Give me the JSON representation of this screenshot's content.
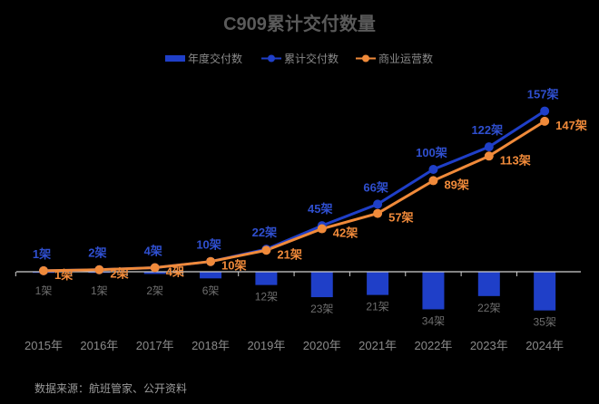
{
  "chart_data": {
    "type": "bar+line",
    "title": "C909累计交付数量",
    "categories": [
      "2015年",
      "2016年",
      "2017年",
      "2018年",
      "2019年",
      "2020年",
      "2021年",
      "2022年",
      "2023年",
      "2024年"
    ],
    "unit": "架",
    "series": [
      {
        "name": "年度交付数",
        "type": "bar",
        "color": "#1f3fc8",
        "values": [
          1,
          1,
          2,
          6,
          12,
          23,
          21,
          34,
          22,
          35
        ],
        "direction": "down"
      },
      {
        "name": "累计交付数",
        "type": "line",
        "color": "#1f3fc8",
        "values": [
          1,
          2,
          4,
          10,
          22,
          45,
          66,
          100,
          122,
          157
        ]
      },
      {
        "name": "商业运营数",
        "type": "line",
        "color": "#f08a3a",
        "values": [
          1,
          2,
          4,
          10,
          21,
          42,
          57,
          89,
          113,
          147
        ]
      }
    ],
    "legend": "top-center",
    "grid": false
  },
  "source": "数据来源：航班管家、公开资料"
}
